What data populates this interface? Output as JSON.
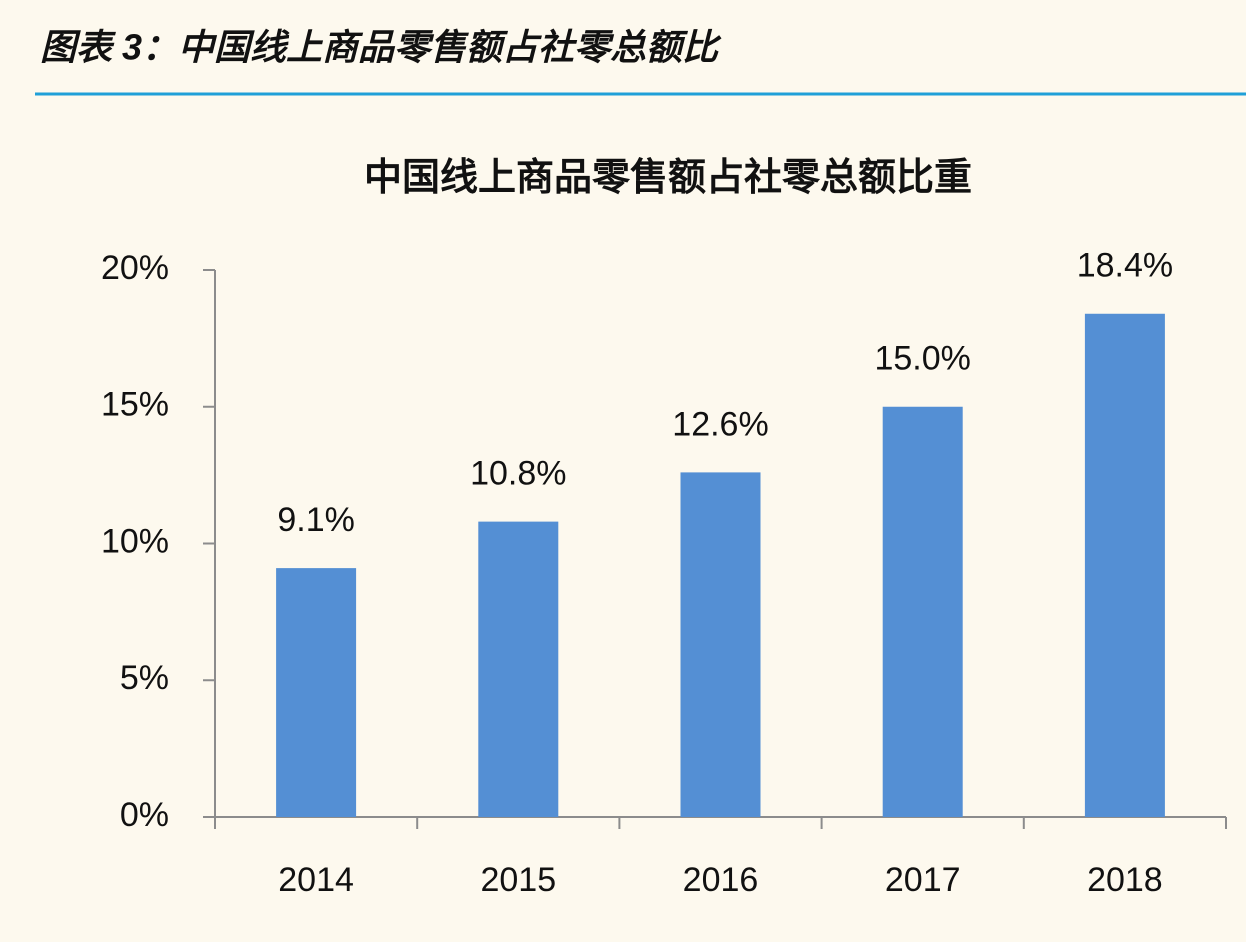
{
  "caption": "图表 3：中国线上商品零售额占社零总额比",
  "chart_data": {
    "type": "bar",
    "title": "中国线上商品零售额占社零总额比重",
    "categories": [
      "2014",
      "2015",
      "2016",
      "2017",
      "2018"
    ],
    "values": [
      9.1,
      10.8,
      12.6,
      15.0,
      18.4
    ],
    "value_labels": [
      "9.1%",
      "10.8%",
      "12.6%",
      "15.0%",
      "18.4%"
    ],
    "color": "#548fd4",
    "ylim": [
      0,
      20
    ],
    "yticks": [
      {
        "value": 0,
        "label": "0%"
      },
      {
        "value": 5,
        "label": "5%"
      },
      {
        "value": 10,
        "label": "10%"
      },
      {
        "value": 15,
        "label": "15%"
      },
      {
        "value": 20,
        "label": "20%"
      }
    ],
    "grid": false
  }
}
